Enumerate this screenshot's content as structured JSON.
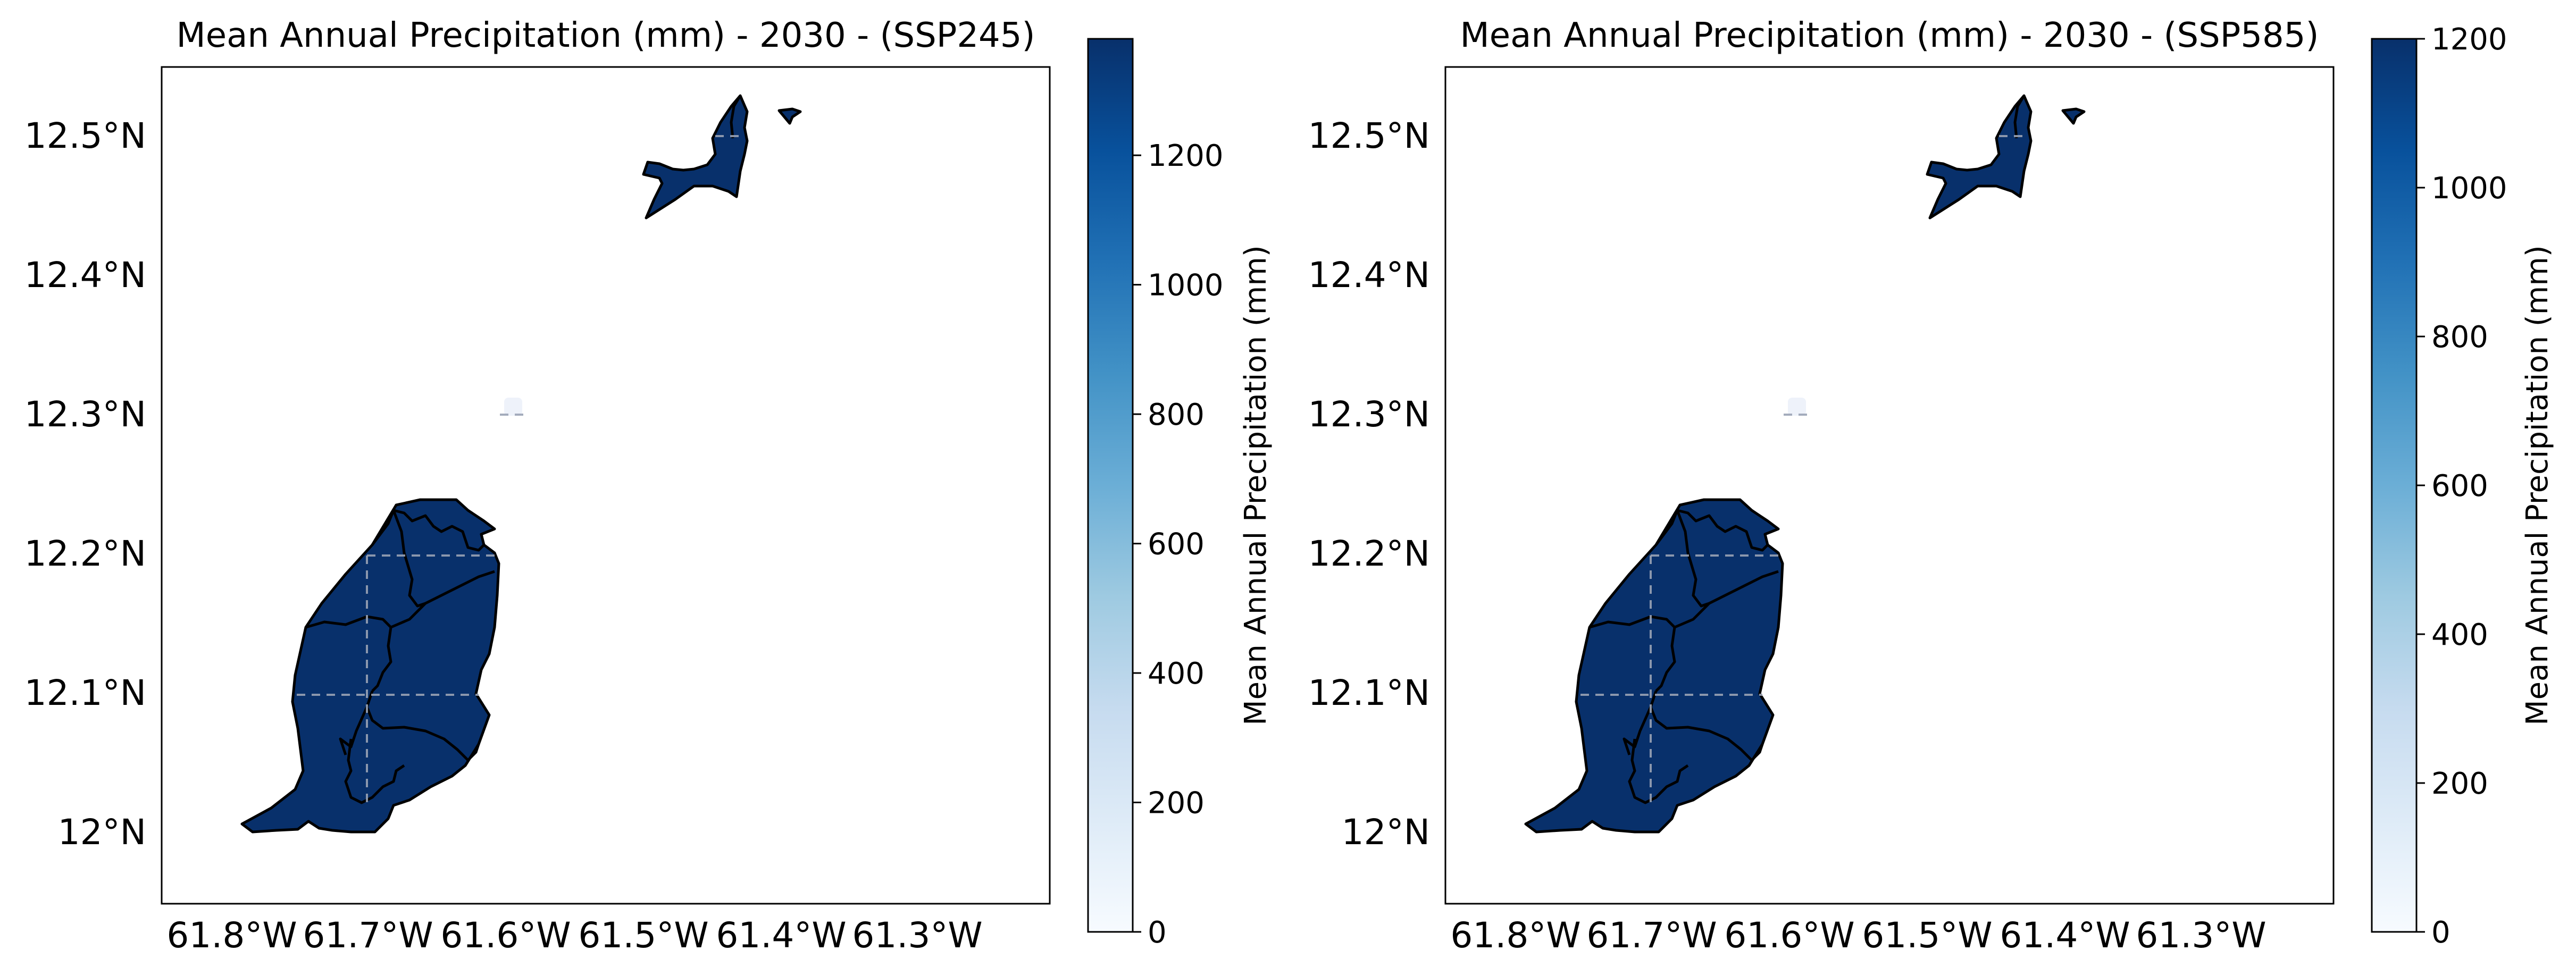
{
  "figure": {
    "panels": [
      {
        "title": "Mean Annual Precipitation (mm) - 2030 - (SSP245)",
        "colorbar_label": "Mean Annual Precipitation (mm)",
        "colorbar_min": 0,
        "colorbar_max": 1380,
        "colorbar_ticks": [
          "0",
          "200",
          "400",
          "600",
          "800",
          "1000",
          "1200"
        ],
        "colorbar_tick_values": [
          0,
          200,
          400,
          600,
          800,
          1000,
          1200
        ]
      },
      {
        "title": "Mean Annual Precipitation (mm) - 2030 - (SSP585)",
        "colorbar_label": "Mean Annual Precipitation (mm)",
        "colorbar_min": 0,
        "colorbar_max": 1200,
        "colorbar_ticks": [
          "0",
          "200",
          "400",
          "600",
          "800",
          "1000",
          "1200"
        ],
        "colorbar_tick_values": [
          0,
          200,
          400,
          600,
          800,
          1000,
          1200
        ]
      }
    ],
    "lon_ticks": [
      "61.8°W",
      "61.7°W",
      "61.6°W",
      "61.5°W",
      "61.4°W",
      "61.3°W"
    ],
    "lat_ticks": [
      "12.5°N",
      "12.4°N",
      "12.3°N",
      "12.2°N",
      "12.1°N",
      "12°N"
    ],
    "colormap": [
      "#f7fbff",
      "#deebf7",
      "#c6dbef",
      "#9ecae1",
      "#6baed6",
      "#4292c6",
      "#2171b5",
      "#08519c",
      "#08306b"
    ],
    "land_color": "#08306b"
  }
}
